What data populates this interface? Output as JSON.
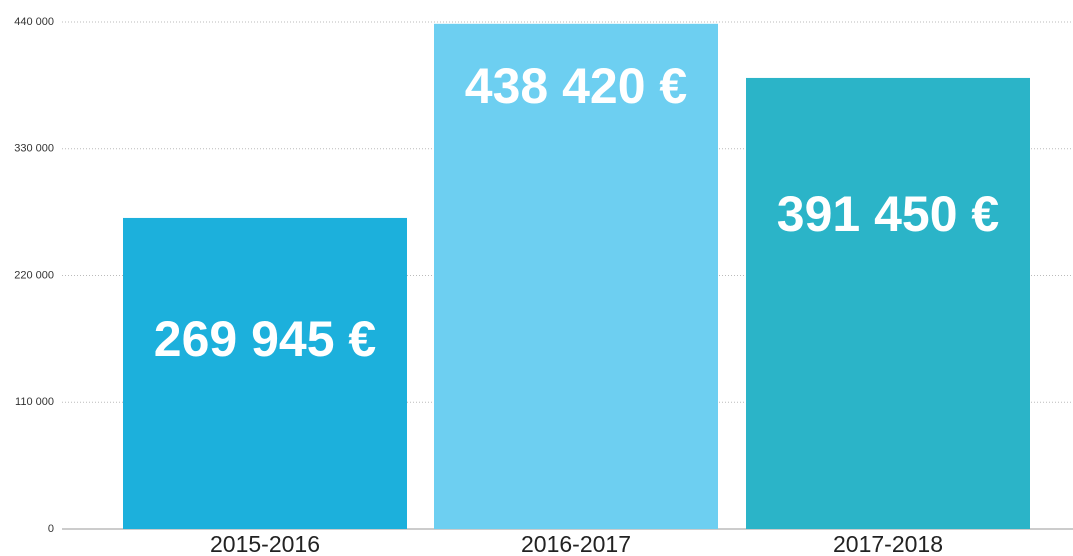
{
  "chart_data": {
    "type": "bar",
    "categories": [
      "2015-2016",
      "2016-2017",
      "2017-2018"
    ],
    "values": [
      269945,
      438420,
      391450
    ],
    "value_labels": [
      "269 945 €",
      "438 420 €",
      "391 450 €"
    ],
    "colors": [
      "#1cb0dc",
      "#6dcff1",
      "#2bb4c8"
    ],
    "ylim": [
      0,
      440000
    ],
    "yticks": [
      0,
      {
        "value": 110000,
        "label": "110 000"
      },
      {
        "value": 220000,
        "label": "220 000"
      },
      {
        "value": 330000,
        "label": "330 000"
      },
      {
        "value": 440000,
        "label": "440 000"
      }
    ],
    "grid": true
  }
}
